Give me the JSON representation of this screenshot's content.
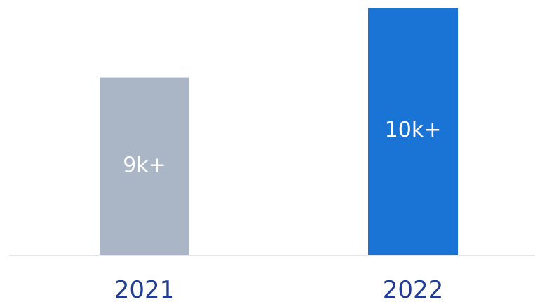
{
  "chart_data": {
    "type": "bar",
    "categories": [
      "2021",
      "2022"
    ],
    "values": [
      9000,
      10000
    ],
    "data_labels": [
      "9k+",
      "10k+"
    ],
    "bar_colors": [
      "#aab5c6",
      "#1a74d6"
    ],
    "title": "",
    "xlabel": "",
    "ylabel": "",
    "ylim": [
      0,
      10000
    ],
    "grid": false,
    "legend": "none",
    "tick_label_color": "#1f3b94",
    "baseline_color": "#e3e6ea"
  }
}
